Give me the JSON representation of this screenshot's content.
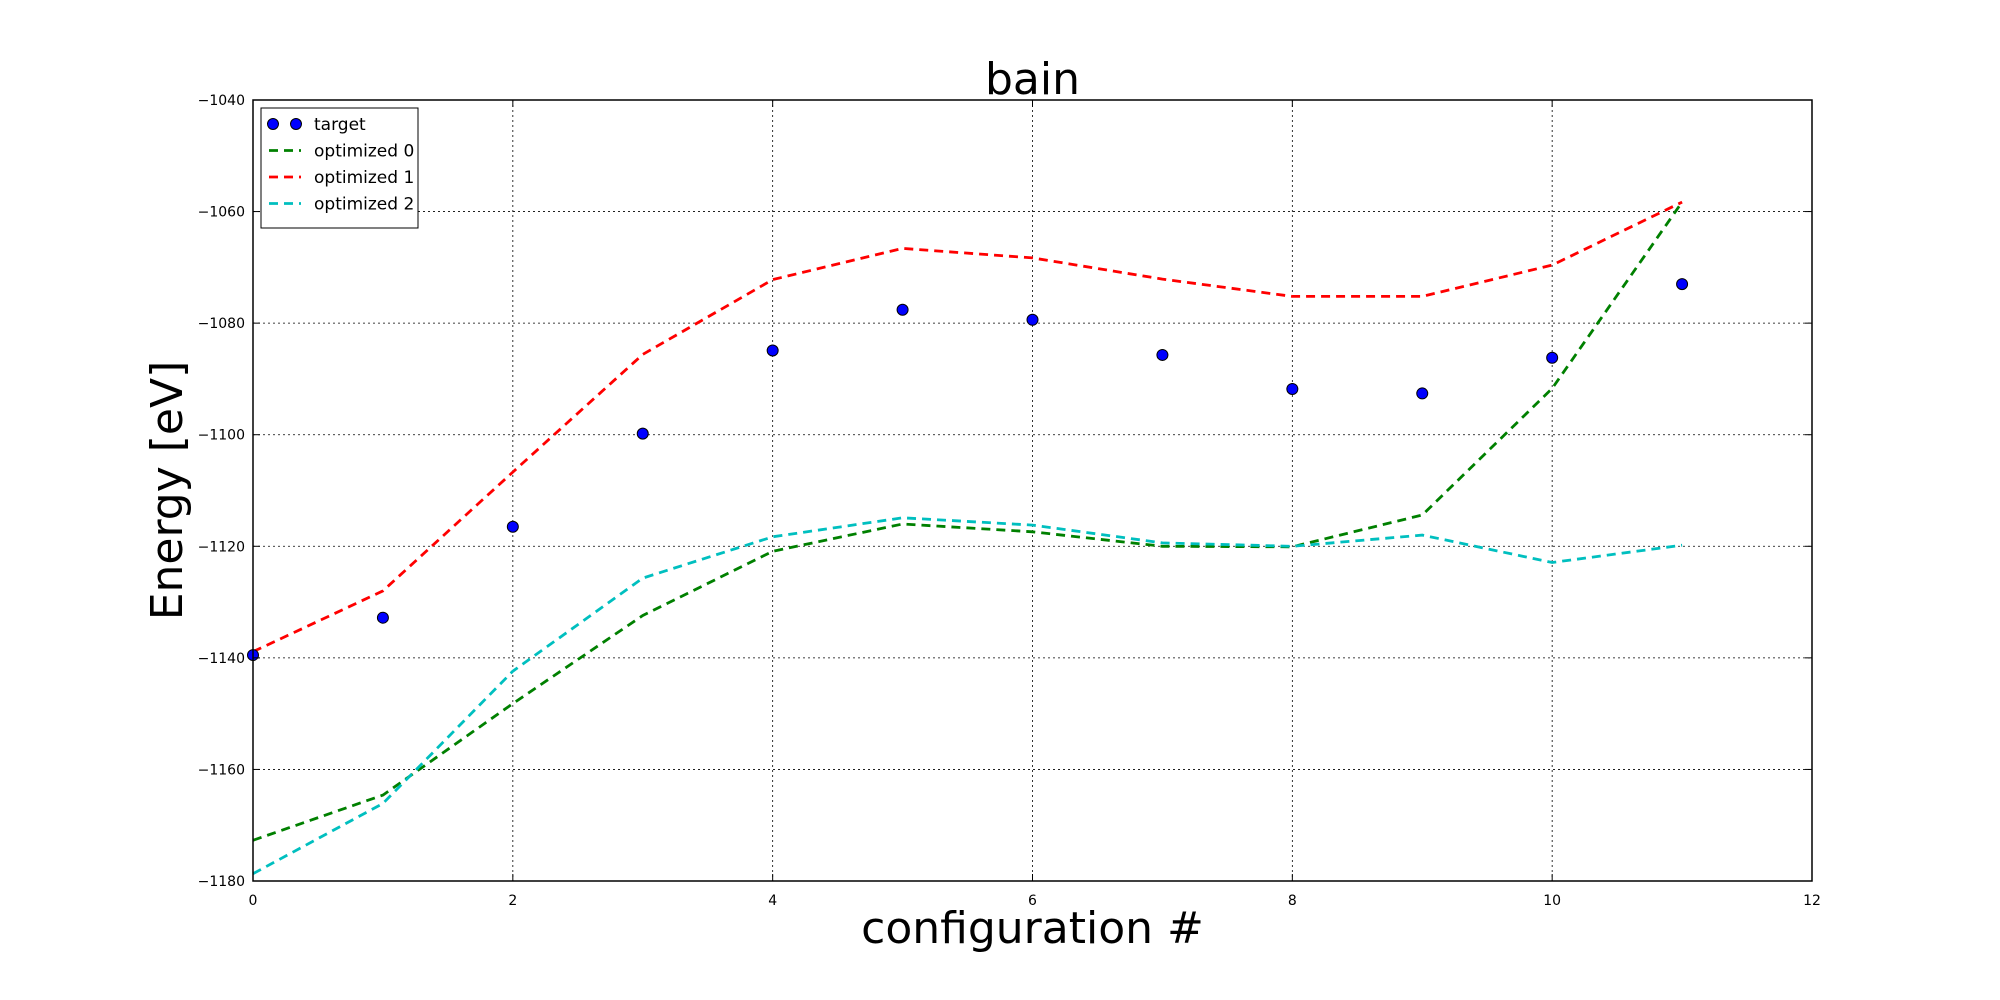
{
  "chart_data": {
    "type": "line",
    "title": "bain",
    "xlabel": "configuration #",
    "ylabel": "Energy [eV]",
    "xlim": [
      0,
      12
    ],
    "ylim": [
      -1180,
      -1040
    ],
    "xticks": [
      0,
      2,
      4,
      6,
      8,
      10,
      12
    ],
    "yticks": [
      -1180,
      -1160,
      -1140,
      -1120,
      -1100,
      -1080,
      -1060,
      -1040
    ],
    "xtick_labels": [
      "0",
      "2",
      "4",
      "6",
      "8",
      "10",
      "12"
    ],
    "ytick_labels": [
      "−1180",
      "−1160",
      "−1140",
      "−1120",
      "−1100",
      "−1080",
      "−1060",
      "−1040"
    ],
    "grid": true,
    "legend_position": "top-left",
    "x": [
      0,
      1,
      2,
      3,
      4,
      5,
      6,
      7,
      8,
      9,
      10,
      11
    ],
    "series": [
      {
        "name": "target",
        "style": "markers",
        "color": "#0000ff",
        "values": [
          -1139.5,
          -1132.8,
          -1116.5,
          -1099.8,
          -1084.9,
          -1077.6,
          -1079.4,
          -1085.7,
          -1091.8,
          -1092.6,
          -1086.2,
          -1073.0
        ]
      },
      {
        "name": "optimized 0",
        "style": "dashed",
        "color": "#008000",
        "values": [
          -1172.7,
          -1164.6,
          -1148.2,
          -1132.4,
          -1120.9,
          -1116.0,
          -1117.4,
          -1120.0,
          -1120.1,
          -1114.4,
          -1091.7,
          -1058.3
        ]
      },
      {
        "name": "optimized 1",
        "style": "dashed",
        "color": "#ff0000",
        "values": [
          -1138.9,
          -1128.0,
          -1106.7,
          -1085.6,
          -1072.2,
          -1066.6,
          -1068.3,
          -1072.1,
          -1075.2,
          -1075.2,
          -1069.6,
          -1058.3
        ]
      },
      {
        "name": "optimized 2",
        "style": "dashed",
        "color": "#00bfbf",
        "values": [
          -1178.7,
          -1166.1,
          -1142.4,
          -1125.7,
          -1118.3,
          -1114.9,
          -1116.2,
          -1119.4,
          -1120.0,
          -1118.0,
          -1122.9,
          -1119.8
        ]
      }
    ]
  }
}
